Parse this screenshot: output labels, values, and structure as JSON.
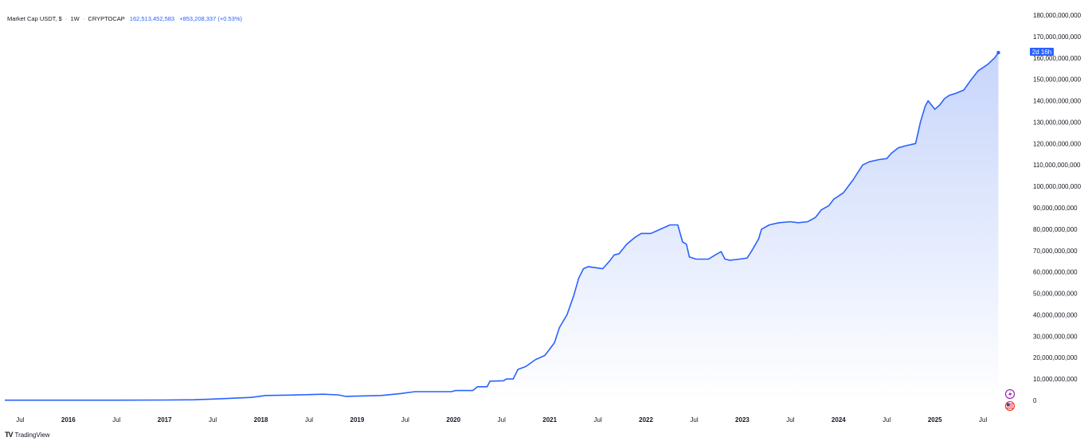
{
  "header": {
    "symbol_label": "Market Cap USDT, $",
    "sep": "·",
    "interval": "1W",
    "exchange": "CRYPTOCAP",
    "last_value": "162,513,452,583",
    "change": "+853,208,337 (+0.53%)"
  },
  "footer": {
    "logo": "TV",
    "brand": "TradingView"
  },
  "countdown": "2d 16h",
  "colors": {
    "line": "#2962ff",
    "fill_top": "#c7d5fb",
    "fill_bottom": "#ffffff",
    "tag": "#2962ff",
    "event_red": "#e53935",
    "event_purple": "#9c27b0"
  },
  "icons": [
    "lightning-event-icon",
    "us-flag-event-icon"
  ],
  "chart_data": {
    "type": "area",
    "title": "Market Cap USDT, $ · 1W · CRYPTOCAP",
    "xlabel": "",
    "ylabel": "",
    "ylim": [
      0,
      180000000000
    ],
    "y_ticks": [
      {
        "value": 180000000000,
        "label": "180,000,000,000"
      },
      {
        "value": 170000000000,
        "label": "170,000,000,000"
      },
      {
        "value": 160000000000,
        "label": "160,000,000,000"
      },
      {
        "value": 150000000000,
        "label": "150,000,000,000"
      },
      {
        "value": 140000000000,
        "label": "140,000,000,000"
      },
      {
        "value": 130000000000,
        "label": "130,000,000,000"
      },
      {
        "value": 120000000000,
        "label": "120,000,000,000"
      },
      {
        "value": 110000000000,
        "label": "110,000,000,000"
      },
      {
        "value": 100000000000,
        "label": "100,000,000,000"
      },
      {
        "value": 90000000000,
        "label": "90,000,000,000"
      },
      {
        "value": 80000000000,
        "label": "80,000,000,000"
      },
      {
        "value": 70000000000,
        "label": "70,000,000,000"
      },
      {
        "value": 60000000000,
        "label": "60,000,000,000"
      },
      {
        "value": 50000000000,
        "label": "50,000,000,000"
      },
      {
        "value": 40000000000,
        "label": "40,000,000,000"
      },
      {
        "value": 30000000000,
        "label": "30,000,000,000"
      },
      {
        "value": 20000000000,
        "label": "20,000,000,000"
      },
      {
        "value": 10000000000,
        "label": "10,000,000,000"
      },
      {
        "value": 0,
        "label": "0"
      }
    ],
    "x_ticks": [
      {
        "t": 2015.5,
        "label": "Jul",
        "year": false
      },
      {
        "t": 2016.0,
        "label": "2016",
        "year": true
      },
      {
        "t": 2016.5,
        "label": "Jul",
        "year": false
      },
      {
        "t": 2017.0,
        "label": "2017",
        "year": true
      },
      {
        "t": 2017.5,
        "label": "Jul",
        "year": false
      },
      {
        "t": 2018.0,
        "label": "2018",
        "year": true
      },
      {
        "t": 2018.5,
        "label": "Jul",
        "year": false
      },
      {
        "t": 2019.0,
        "label": "2019",
        "year": true
      },
      {
        "t": 2019.5,
        "label": "Jul",
        "year": false
      },
      {
        "t": 2020.0,
        "label": "2020",
        "year": true
      },
      {
        "t": 2020.5,
        "label": "Jul",
        "year": false
      },
      {
        "t": 2021.0,
        "label": "2021",
        "year": true
      },
      {
        "t": 2021.5,
        "label": "Jul",
        "year": false
      },
      {
        "t": 2022.0,
        "label": "2022",
        "year": true
      },
      {
        "t": 2022.5,
        "label": "Jul",
        "year": false
      },
      {
        "t": 2023.0,
        "label": "2023",
        "year": true
      },
      {
        "t": 2023.5,
        "label": "Jul",
        "year": false
      },
      {
        "t": 2024.0,
        "label": "2024",
        "year": true
      },
      {
        "t": 2024.5,
        "label": "Jul",
        "year": false
      },
      {
        "t": 2025.0,
        "label": "2025",
        "year": true
      },
      {
        "t": 2025.5,
        "label": "Jul",
        "year": false
      }
    ],
    "x_range": [
      2015.34,
      2025.78
    ],
    "series": [
      {
        "name": "USDT",
        "points": [
          [
            2015.34,
            100000000.0
          ],
          [
            2016.5,
            100000000.0
          ],
          [
            2017.0,
            200000000.0
          ],
          [
            2017.3,
            300000000.0
          ],
          [
            2017.6,
            800000000.0
          ],
          [
            2017.9,
            1400000000.0
          ],
          [
            2018.05,
            2300000000.0
          ],
          [
            2018.3,
            2500000000.0
          ],
          [
            2018.5,
            2700000000.0
          ],
          [
            2018.65,
            2900000000.0
          ],
          [
            2018.8,
            2600000000.0
          ],
          [
            2018.88,
            1900000000.0
          ],
          [
            2019.0,
            2000000000.0
          ],
          [
            2019.25,
            2300000000.0
          ],
          [
            2019.45,
            3200000000.0
          ],
          [
            2019.6,
            4100000000.0
          ],
          [
            2019.8,
            4100000000.0
          ],
          [
            2019.98,
            4100000000.0
          ],
          [
            2020.02,
            4600000000.0
          ],
          [
            2020.2,
            4600000000.0
          ],
          [
            2020.25,
            6400000000.0
          ],
          [
            2020.35,
            6400000000.0
          ],
          [
            2020.38,
            9000000000.0
          ],
          [
            2020.52,
            9200000000.0
          ],
          [
            2020.55,
            10000000000.0
          ],
          [
            2020.62,
            10000000000.0
          ],
          [
            2020.67,
            14500000000.0
          ],
          [
            2020.75,
            15800000000.0
          ],
          [
            2020.85,
            19000000000.0
          ],
          [
            2020.95,
            21000000000.0
          ],
          [
            2021.0,
            24000000000.0
          ],
          [
            2021.05,
            27000000000.0
          ],
          [
            2021.1,
            34000000000.0
          ],
          [
            2021.18,
            40000000000.0
          ],
          [
            2021.25,
            49000000000.0
          ],
          [
            2021.3,
            57000000000.0
          ],
          [
            2021.35,
            61500000000.0
          ],
          [
            2021.4,
            62500000000.0
          ],
          [
            2021.55,
            61500000000.0
          ],
          [
            2021.62,
            65000000000.0
          ],
          [
            2021.67,
            68000000000.0
          ],
          [
            2021.72,
            68500000000.0
          ],
          [
            2021.8,
            73000000000.0
          ],
          [
            2021.88,
            76000000000.0
          ],
          [
            2021.95,
            78000000000.0
          ],
          [
            2022.05,
            78000000000.0
          ],
          [
            2022.15,
            80000000000.0
          ],
          [
            2022.25,
            82000000000.0
          ],
          [
            2022.33,
            82000000000.0
          ],
          [
            2022.38,
            74000000000.0
          ],
          [
            2022.42,
            73000000000.0
          ],
          [
            2022.45,
            67000000000.0
          ],
          [
            2022.52,
            66000000000.0
          ],
          [
            2022.65,
            66000000000.0
          ],
          [
            2022.72,
            68000000000.0
          ],
          [
            2022.78,
            69500000000.0
          ],
          [
            2022.82,
            66000000000.0
          ],
          [
            2022.87,
            65500000000.0
          ],
          [
            2022.97,
            66000000000.0
          ],
          [
            2023.05,
            66500000000.0
          ],
          [
            2023.1,
            70000000000.0
          ],
          [
            2023.17,
            75500000000.0
          ],
          [
            2023.2,
            80000000000.0
          ],
          [
            2023.28,
            82000000000.0
          ],
          [
            2023.38,
            83000000000.0
          ],
          [
            2023.5,
            83500000000.0
          ],
          [
            2023.58,
            83000000000.0
          ],
          [
            2023.68,
            83500000000.0
          ],
          [
            2023.76,
            85500000000.0
          ],
          [
            2023.82,
            89000000000.0
          ],
          [
            2023.9,
            91000000000.0
          ],
          [
            2023.95,
            94000000000.0
          ],
          [
            2024.05,
            97000000000.0
          ],
          [
            2024.15,
            103000000000.0
          ],
          [
            2024.25,
            110000000000.0
          ],
          [
            2024.32,
            111500000000.0
          ],
          [
            2024.42,
            112500000000.0
          ],
          [
            2024.5,
            113000000000.0
          ],
          [
            2024.55,
            115500000000.0
          ],
          [
            2024.62,
            118000000000.0
          ],
          [
            2024.7,
            119000000000.0
          ],
          [
            2024.8,
            120000000000.0
          ],
          [
            2024.85,
            130000000000.0
          ],
          [
            2024.9,
            137500000000.0
          ],
          [
            2024.93,
            140000000000.0
          ],
          [
            2025.0,
            136000000000.0
          ],
          [
            2025.05,
            138000000000.0
          ],
          [
            2025.1,
            141000000000.0
          ],
          [
            2025.15,
            142500000000.0
          ],
          [
            2025.22,
            143500000000.0
          ],
          [
            2025.3,
            145000000000.0
          ],
          [
            2025.38,
            150000000000.0
          ],
          [
            2025.45,
            154000000000.0
          ],
          [
            2025.55,
            157000000000.0
          ],
          [
            2025.62,
            160000000000.0
          ],
          [
            2025.66,
            162500000000.0
          ]
        ]
      }
    ]
  }
}
